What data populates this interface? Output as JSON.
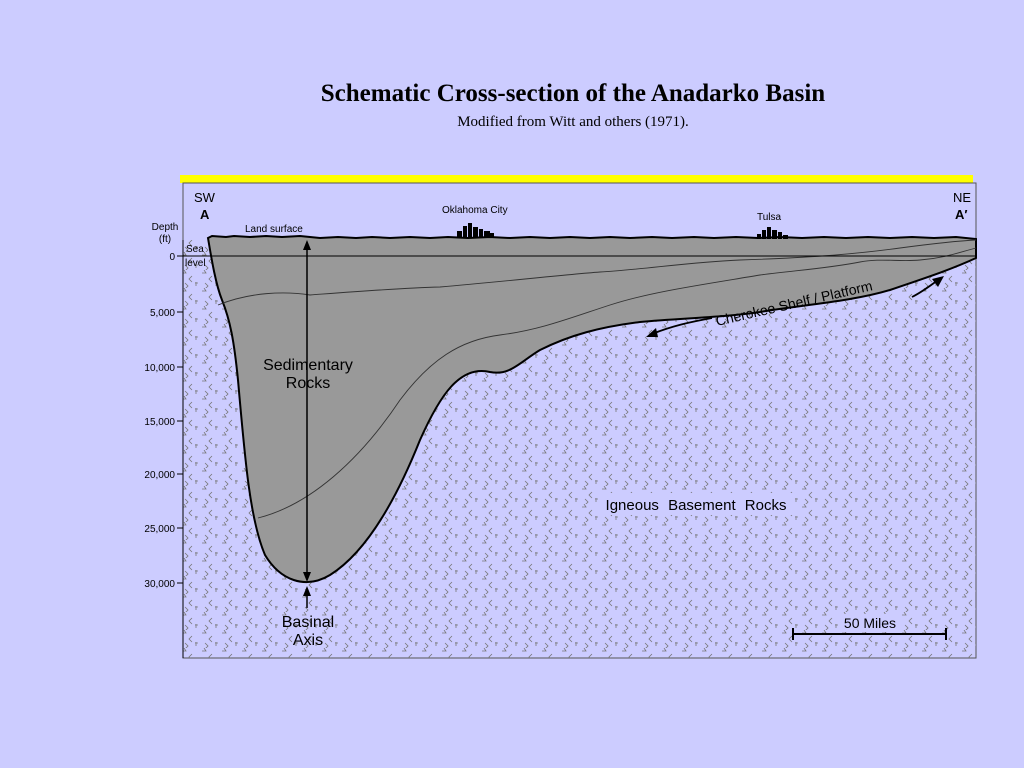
{
  "title": "Schematic Cross-section of the Anadarko Basin",
  "subtitle": "Modified from Witt and others (1971).",
  "diagram": {
    "sw_label": "SW",
    "sw_point": "A",
    "ne_label": "NE",
    "ne_point": "A′",
    "depth_label_1": "Depth",
    "depth_label_2": "(ft)",
    "sea_level_1": "Sea",
    "sea_level_2": "level",
    "land_surface": "Land surface",
    "oklahoma_city": "Oklahoma City",
    "tulsa": "Tulsa",
    "depth_ticks": [
      "0",
      "5,000",
      "10,000",
      "15,000",
      "20,000",
      "25,000",
      "30,000"
    ],
    "sedimentary_1": "Sedimentary",
    "sedimentary_2": "Rocks",
    "basinal_1": "Basinal",
    "basinal_2": "Axis",
    "cherokee": "Cherokee Shelf / Platform",
    "igneous": "Igneous Basement Rocks",
    "scale_bar": "50 Miles"
  },
  "colors": {
    "background": "#ccccff",
    "basement": "#ccccff",
    "sediment": "#999999",
    "top_bar": "#ffff00"
  }
}
